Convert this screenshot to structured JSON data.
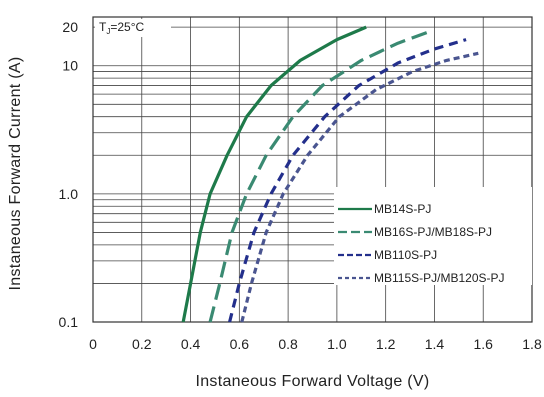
{
  "chart_data": {
    "type": "line",
    "xlabel": "Instaneous Forward Voltage (V)",
    "ylabel": "Instaneous Forward Current (A)",
    "annotation": "T₁=25°C",
    "annotation_main": "T",
    "annotation_sub": "J",
    "annotation_rest": "=25°C",
    "xlim": [
      0,
      1.8
    ],
    "ylim": [
      0.1,
      20
    ],
    "y_scale": "log",
    "x_ticks": [
      0,
      0.2,
      0.4,
      0.6,
      0.8,
      1.0,
      1.2,
      1.4,
      1.6,
      1.8
    ],
    "x_tick_labels": [
      "0",
      "0.2",
      "0.4",
      "0.6",
      "0.8",
      "1.0",
      "1.2",
      "1.4",
      "1.6",
      "1.8"
    ],
    "y_ticks": [
      0.1,
      1.0,
      10,
      20
    ],
    "y_tick_labels": [
      "0.1",
      "1.0",
      "10",
      "20"
    ],
    "grid": true,
    "legend_position": "right-center",
    "series": [
      {
        "name": "MB14S-PJ",
        "color": "#1e7a4a",
        "dash": "solid",
        "points": [
          [
            0.37,
            0.1
          ],
          [
            0.4,
            0.2
          ],
          [
            0.44,
            0.5
          ],
          [
            0.48,
            1.0
          ],
          [
            0.55,
            2.0
          ],
          [
            0.63,
            4.0
          ],
          [
            0.73,
            7.0
          ],
          [
            0.85,
            11.0
          ],
          [
            1.0,
            16.0
          ],
          [
            1.12,
            20.0
          ]
        ]
      },
      {
        "name": "MB16S-PJ/MB18S-PJ",
        "color": "#3a8a72",
        "dash": "long",
        "points": [
          [
            0.48,
            0.1
          ],
          [
            0.52,
            0.2
          ],
          [
            0.57,
            0.5
          ],
          [
            0.63,
            1.0
          ],
          [
            0.71,
            2.0
          ],
          [
            0.82,
            4.0
          ],
          [
            0.94,
            7.0
          ],
          [
            1.1,
            11.0
          ],
          [
            1.25,
            15.0
          ],
          [
            1.38,
            18.5
          ]
        ]
      },
      {
        "name": "MB110S-PJ",
        "color": "#232f8c",
        "dash": "medium",
        "points": [
          [
            0.56,
            0.1
          ],
          [
            0.6,
            0.2
          ],
          [
            0.66,
            0.5
          ],
          [
            0.73,
            1.0
          ],
          [
            0.82,
            2.0
          ],
          [
            0.95,
            4.0
          ],
          [
            1.09,
            7.0
          ],
          [
            1.25,
            10.5
          ],
          [
            1.4,
            13.5
          ],
          [
            1.53,
            16.0
          ]
        ]
      },
      {
        "name": "MB115S-PJ/MB120S-PJ",
        "color": "#4a5590",
        "dash": "short",
        "points": [
          [
            0.61,
            0.1
          ],
          [
            0.65,
            0.2
          ],
          [
            0.71,
            0.5
          ],
          [
            0.78,
            1.0
          ],
          [
            0.88,
            2.0
          ],
          [
            1.01,
            4.0
          ],
          [
            1.16,
            6.5
          ],
          [
            1.31,
            9.0
          ],
          [
            1.45,
            11.0
          ],
          [
            1.58,
            12.5
          ]
        ]
      }
    ]
  }
}
